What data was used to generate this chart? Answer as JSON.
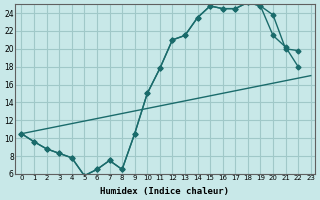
{
  "xlabel": "Humidex (Indice chaleur)",
  "ylabel": "",
  "bg_color": "#c8e8e8",
  "grid_color": "#a0c8c8",
  "line_color": "#1a6b6b",
  "xlim": [
    0,
    23
  ],
  "ylim": [
    6,
    25
  ],
  "xticks": [
    0,
    1,
    2,
    3,
    4,
    5,
    6,
    7,
    8,
    9,
    10,
    11,
    12,
    13,
    14,
    15,
    16,
    17,
    18,
    19,
    20,
    21,
    22,
    23
  ],
  "yticks": [
    6,
    8,
    10,
    12,
    14,
    16,
    18,
    20,
    22,
    24
  ],
  "line1_x": [
    0,
    1,
    2,
    3,
    4,
    5,
    6,
    7,
    8,
    9,
    10,
    11,
    12,
    13,
    14,
    15,
    16,
    17,
    18,
    19,
    20,
    21,
    22,
    23
  ],
  "line1_y": [
    10.5,
    9.6,
    8.8,
    8.3,
    7.8,
    5.8,
    6.5,
    7.5,
    6.5,
    10.5,
    15.0,
    17.8,
    21.0,
    21.5,
    23.5,
    24.8,
    24.5,
    24.5,
    25.2,
    24.8,
    23.8,
    20.0,
    19.8,
    null
  ],
  "line2_x": [
    0,
    1,
    2,
    3,
    4,
    5,
    6,
    7,
    8,
    9,
    10,
    11,
    12,
    13,
    14,
    15,
    16,
    17,
    18,
    19,
    20,
    21,
    22,
    23
  ],
  "line2_y": [
    10.5,
    9.6,
    8.8,
    8.3,
    7.8,
    5.8,
    6.5,
    7.5,
    6.5,
    10.5,
    15.0,
    17.8,
    21.0,
    21.5,
    23.5,
    24.8,
    24.5,
    24.5,
    25.2,
    24.8,
    21.5,
    20.2,
    18.0,
    null
  ],
  "line3_x": [
    0,
    23
  ],
  "line3_y": [
    10.5,
    17.0
  ]
}
